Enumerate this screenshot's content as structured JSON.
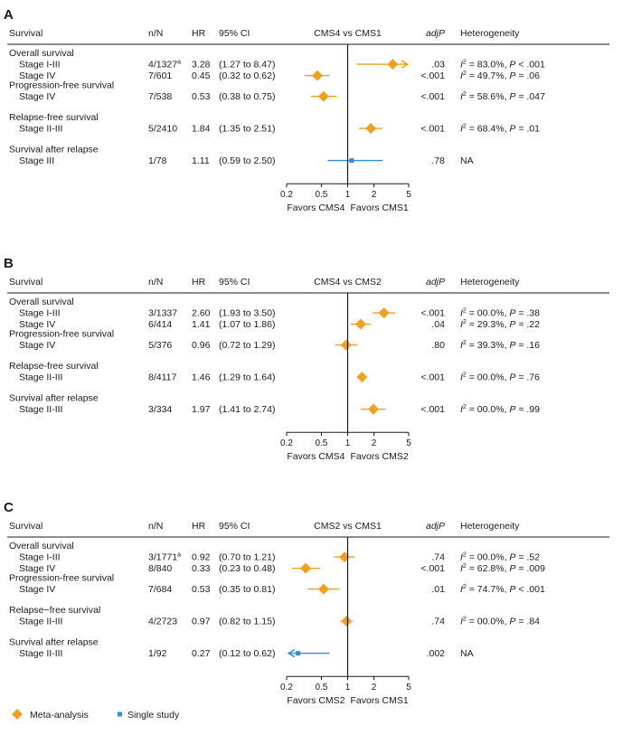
{
  "figure": {
    "columns": {
      "survival": "Survival",
      "nN": "n/N",
      "hr": "HR",
      "ci": "95% CI",
      "adjp": "adjP",
      "heterogeneity": "Heterogeneity"
    },
    "tick_labels": [
      "0.2",
      "0.5",
      "1",
      "2",
      "5"
    ],
    "legend": [
      {
        "label": "Meta-analysis",
        "marker": "diamond",
        "color": "#f0a020"
      },
      {
        "label": "Single study",
        "marker": "square",
        "color": "#2e8fd8"
      }
    ],
    "colors": {
      "meta": "#f0a020",
      "single": "#2e8fd8",
      "axis": "#1a1a1a"
    }
  },
  "chart_data": [
    {
      "type": "forest",
      "panel": "A",
      "comparison": "CMS4 vs CMS1",
      "x_scale": "log",
      "xlim": [
        0.2,
        5
      ],
      "xticks": [
        0.2,
        0.5,
        1,
        2,
        5
      ],
      "favors_left": "Favors CMS4",
      "favors_right": "Favors CMS1",
      "groups": [
        {
          "label": "Overall survival",
          "rows": [
            {
              "label": "Stage I-III",
              "nN": "4/1327",
              "note": "a",
              "hr": 3.28,
              "hr_text": "3.28",
              "lo": 1.27,
              "hi": 8.47,
              "ci_text": "(1.27 to 8.47)",
              "adjp": ".03",
              "het_i2": "83.0%",
              "het_p": "< .001",
              "marker": "diamond",
              "arrow": "right"
            },
            {
              "label": "Stage IV",
              "nN": "7/601",
              "note": "",
              "hr": 0.45,
              "hr_text": "0.45",
              "lo": 0.32,
              "hi": 0.62,
              "ci_text": "(0.32 to 0.62)",
              "adjp": "<.001",
              "het_i2": "49.7%",
              "het_p": "= .06",
              "marker": "diamond",
              "arrow": ""
            }
          ]
        },
        {
          "label": "Progression-free survival",
          "rows": [
            {
              "label": "Stage IV",
              "nN": "7/538",
              "note": "",
              "hr": 0.53,
              "hr_text": "0.53",
              "lo": 0.38,
              "hi": 0.75,
              "ci_text": "(0.38 to 0.75)",
              "adjp": "<.001",
              "het_i2": "58.6%",
              "het_p": "= .047",
              "marker": "diamond",
              "arrow": ""
            }
          ]
        },
        {
          "label": "Relapse-free survival",
          "rows": [
            {
              "label": "Stage II-III",
              "nN": "5/2410",
              "note": "",
              "hr": 1.84,
              "hr_text": "1.84",
              "lo": 1.35,
              "hi": 2.51,
              "ci_text": "(1.35 to 2.51)",
              "adjp": "<.001",
              "het_i2": "68.4%",
              "het_p": "= .01",
              "marker": "diamond",
              "arrow": ""
            }
          ]
        },
        {
          "label": "Survival after relapse",
          "rows": [
            {
              "label": "Stage III",
              "nN": "1/78",
              "note": "",
              "hr": 1.11,
              "hr_text": "1.11",
              "lo": 0.59,
              "hi": 2.5,
              "ci_text": "(0.59 to 2.50)",
              "adjp": ".78",
              "het_text": "NA",
              "marker": "square",
              "arrow": ""
            }
          ]
        }
      ]
    },
    {
      "type": "forest",
      "panel": "B",
      "comparison": "CMS4 vs CMS2",
      "x_scale": "log",
      "xlim": [
        0.2,
        5
      ],
      "xticks": [
        0.2,
        0.5,
        1,
        2,
        5
      ],
      "favors_left": "Favors CMS4",
      "favors_right": "Favors CMS2",
      "groups": [
        {
          "label": "Overall survival",
          "rows": [
            {
              "label": "Stage I-III",
              "nN": "3/1337",
              "note": "",
              "hr": 2.6,
              "hr_text": "2.60",
              "lo": 1.93,
              "hi": 3.5,
              "ci_text": "(1.93 to 3.50)",
              "adjp": "<.001",
              "het_i2": "00.0%",
              "het_p": "= .38",
              "marker": "diamond",
              "arrow": ""
            },
            {
              "label": "Stage IV",
              "nN": "6/414",
              "note": "",
              "hr": 1.41,
              "hr_text": "1.41",
              "lo": 1.07,
              "hi": 1.86,
              "ci_text": "(1.07 to 1.86)",
              "adjp": ".04",
              "het_i2": "29.3%",
              "het_p": "= .22",
              "marker": "diamond",
              "arrow": ""
            }
          ]
        },
        {
          "label": "Progression-free survival",
          "rows": [
            {
              "label": "Stage IV",
              "nN": "5/376",
              "note": "",
              "hr": 0.96,
              "hr_text": "0.96",
              "lo": 0.72,
              "hi": 1.29,
              "ci_text": "(0.72 to 1.29)",
              "adjp": ".80",
              "het_i2": "39.3%",
              "het_p": "= .16",
              "marker": "diamond",
              "arrow": ""
            }
          ]
        },
        {
          "label": "Relapse-free survival",
          "rows": [
            {
              "label": "Stage II-III",
              "nN": "8/4117",
              "note": "",
              "hr": 1.46,
              "hr_text": "1.46",
              "lo": 1.29,
              "hi": 1.64,
              "ci_text": "(1.29 to 1.64)",
              "adjp": "<.001",
              "het_i2": "00.0%",
              "het_p": "= .76",
              "marker": "diamond",
              "arrow": ""
            }
          ]
        },
        {
          "label": "Survival after relapse",
          "rows": [
            {
              "label": "Stage II-III",
              "nN": "3/334",
              "note": "",
              "hr": 1.97,
              "hr_text": "1.97",
              "lo": 1.41,
              "hi": 2.74,
              "ci_text": "(1.41 to 2.74)",
              "adjp": "<.001",
              "het_i2": "00.0%",
              "het_p": "= .99",
              "marker": "diamond",
              "arrow": ""
            }
          ]
        }
      ]
    },
    {
      "type": "forest",
      "panel": "C",
      "comparison": "CMS2 vs CMS1",
      "x_scale": "log",
      "xlim": [
        0.2,
        5
      ],
      "xticks": [
        0.2,
        0.5,
        1,
        2,
        5
      ],
      "favors_left": "Favors CMS2",
      "favors_right": "Favors CMS1",
      "groups": [
        {
          "label": "Overall survival",
          "rows": [
            {
              "label": "Stage I-III",
              "nN": "3/1771",
              "note": "a",
              "hr": 0.92,
              "hr_text": "0.92",
              "lo": 0.7,
              "hi": 1.21,
              "ci_text": "(0.70 to 1.21)",
              "adjp": ".74",
              "het_i2": "00.0%",
              "het_p": "= .52",
              "marker": "diamond",
              "arrow": ""
            },
            {
              "label": "Stage IV",
              "nN": "8/840",
              "note": "",
              "hr": 0.33,
              "hr_text": "0.33",
              "lo": 0.23,
              "hi": 0.48,
              "ci_text": "(0.23 to 0.48)",
              "adjp": "<.001",
              "het_i2": "62.8%",
              "het_p": "= .009",
              "marker": "diamond",
              "arrow": ""
            }
          ]
        },
        {
          "label": "Progression-free survival",
          "rows": [
            {
              "label": "Stage IV",
              "nN": "7/684",
              "note": "",
              "hr": 0.53,
              "hr_text": "0.53",
              "lo": 0.35,
              "hi": 0.81,
              "ci_text": "(0.35 to 0.81)",
              "adjp": ".01",
              "het_i2": "74.7%",
              "het_p": "< .001",
              "marker": "diamond",
              "arrow": ""
            }
          ]
        },
        {
          "label": "Relapse−free survival",
          "rows": [
            {
              "label": "Stage II-III",
              "nN": "4/2723",
              "note": "",
              "hr": 0.97,
              "hr_text": "0.97",
              "lo": 0.82,
              "hi": 1.15,
              "ci_text": "(0.82 to 1.15)",
              "adjp": ".74",
              "het_i2": "00.0%",
              "het_p": "= .84",
              "marker": "diamond",
              "arrow": ""
            }
          ]
        },
        {
          "label": "Survival after relapse",
          "rows": [
            {
              "label": "Stage II-III",
              "nN": "1/92",
              "note": "",
              "hr": 0.27,
              "hr_text": "0.27",
              "lo": 0.12,
              "hi": 0.62,
              "ci_text": "(0.12 to 0.62)",
              "adjp": ".002",
              "het_text": "NA",
              "marker": "square",
              "arrow": "left"
            }
          ]
        }
      ]
    }
  ]
}
